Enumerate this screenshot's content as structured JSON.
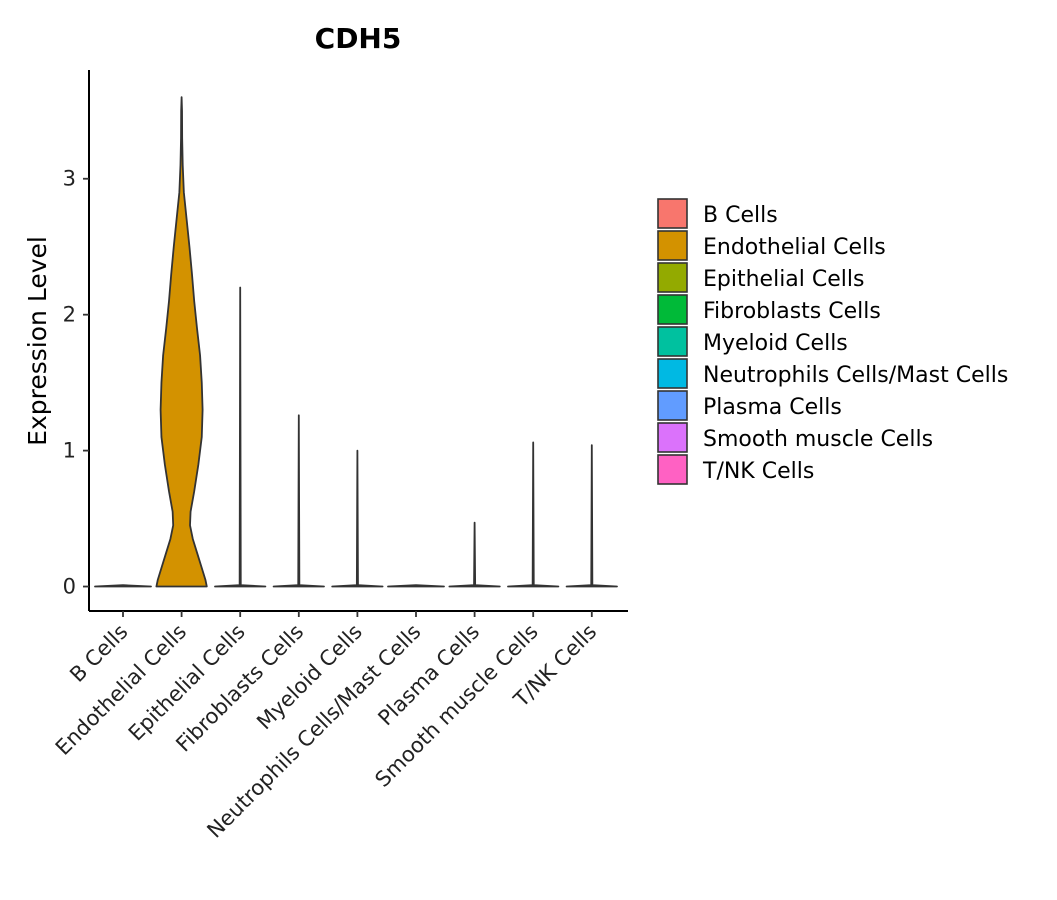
{
  "chart_data": {
    "type": "violin",
    "title": "CDH5",
    "xlabel": "",
    "ylabel": "Expression Level",
    "ylim": [
      -0.18,
      3.8
    ],
    "yticks": [
      0,
      1,
      2,
      3
    ],
    "ytick_labels": [
      "0",
      "1",
      "2",
      "3"
    ],
    "legend_position": "right",
    "categories": [
      "B Cells",
      "Endothelial Cells",
      "Epithelial Cells",
      "Fibroblasts Cells",
      "Myeloid Cells",
      "Neutrophils Cells/Mast Cells",
      "Plasma Cells",
      "Smooth muscle Cells",
      "T/NK Cells"
    ],
    "colors": [
      "#F8766D",
      "#D39200",
      "#93AA00",
      "#00BA38",
      "#00C19F",
      "#00B9E3",
      "#619CFF",
      "#DB72FB",
      "#FF61C3"
    ],
    "max_values": [
      0.0,
      3.6,
      2.2,
      1.26,
      1.0,
      0.0,
      0.47,
      1.06,
      1.04
    ],
    "violins": [
      {
        "name": "B Cells",
        "profile": [
          [
            0,
            1.0
          ],
          [
            0.01,
            0.0
          ]
        ]
      },
      {
        "name": "Endothelial Cells",
        "profile": [
          [
            0.0,
            0.9
          ],
          [
            0.05,
            0.85
          ],
          [
            0.15,
            0.7
          ],
          [
            0.25,
            0.55
          ],
          [
            0.35,
            0.4
          ],
          [
            0.45,
            0.3
          ],
          [
            0.55,
            0.32
          ],
          [
            0.7,
            0.45
          ],
          [
            0.9,
            0.6
          ],
          [
            1.1,
            0.72
          ],
          [
            1.3,
            0.75
          ],
          [
            1.5,
            0.72
          ],
          [
            1.7,
            0.66
          ],
          [
            1.9,
            0.55
          ],
          [
            2.1,
            0.45
          ],
          [
            2.3,
            0.37
          ],
          [
            2.5,
            0.28
          ],
          [
            2.7,
            0.18
          ],
          [
            2.9,
            0.08
          ],
          [
            3.1,
            0.04
          ],
          [
            3.3,
            0.02
          ],
          [
            3.5,
            0.015
          ],
          [
            3.6,
            0.0
          ]
        ]
      },
      {
        "name": "Epithelial Cells",
        "profile": [
          [
            0,
            0.9
          ],
          [
            0.01,
            0.02
          ],
          [
            2.2,
            0.0
          ]
        ]
      },
      {
        "name": "Fibroblasts Cells",
        "profile": [
          [
            0,
            0.9
          ],
          [
            0.01,
            0.02
          ],
          [
            1.26,
            0.0
          ]
        ]
      },
      {
        "name": "Myeloid Cells",
        "profile": [
          [
            0,
            0.9
          ],
          [
            0.01,
            0.02
          ],
          [
            1.0,
            0.0
          ]
        ]
      },
      {
        "name": "Neutrophils Cells/Mast Cells",
        "profile": [
          [
            0,
            1.0
          ],
          [
            0.01,
            0.0
          ]
        ]
      },
      {
        "name": "Plasma Cells",
        "profile": [
          [
            0,
            0.9
          ],
          [
            0.01,
            0.02
          ],
          [
            0.47,
            0.0
          ]
        ]
      },
      {
        "name": "Smooth muscle Cells",
        "profile": [
          [
            0,
            0.9
          ],
          [
            0.01,
            0.02
          ],
          [
            1.06,
            0.0
          ]
        ]
      },
      {
        "name": "T/NK Cells",
        "profile": [
          [
            0,
            0.9
          ],
          [
            0.01,
            0.02
          ],
          [
            1.04,
            0.0
          ]
        ]
      }
    ],
    "legend": [
      {
        "label": "B Cells",
        "color": "#F8766D"
      },
      {
        "label": "Endothelial Cells",
        "color": "#D39200"
      },
      {
        "label": "Epithelial Cells",
        "color": "#93AA00"
      },
      {
        "label": "Fibroblasts Cells",
        "color": "#00BA38"
      },
      {
        "label": "Myeloid Cells",
        "color": "#00C19F"
      },
      {
        "label": "Neutrophils Cells/Mast Cells",
        "color": "#00B9E3"
      },
      {
        "label": "Plasma Cells",
        "color": "#619CFF"
      },
      {
        "label": "Smooth muscle Cells",
        "color": "#DB72FB"
      },
      {
        "label": "T/NK Cells",
        "color": "#FF61C3"
      }
    ]
  }
}
